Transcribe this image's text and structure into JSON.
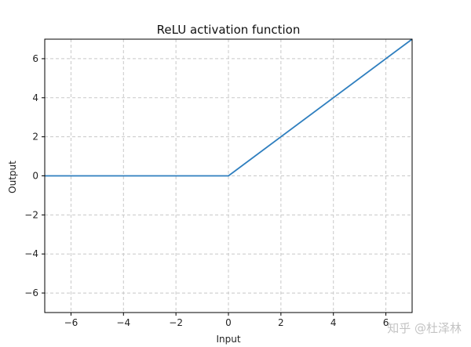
{
  "chart_data": {
    "type": "line",
    "title": "ReLU activation function",
    "xlabel": "Input",
    "ylabel": "Output",
    "xlim": [
      -7,
      7
    ],
    "ylim": [
      -7,
      7
    ],
    "grid": true,
    "x_ticks": [
      -6,
      -4,
      -2,
      0,
      2,
      4,
      6
    ],
    "y_ticks": [
      -6,
      -4,
      -2,
      0,
      2,
      4,
      6
    ],
    "x_tick_labels": [
      "−6",
      "−4",
      "−2",
      "0",
      "2",
      "4",
      "6"
    ],
    "y_tick_labels": [
      "−6",
      "−4",
      "−2",
      "0",
      "2",
      "4",
      "6"
    ],
    "series": [
      {
        "x": [
          -7,
          0,
          7
        ],
        "y": [
          0,
          0,
          7
        ],
        "color": "#2f7fbf"
      }
    ]
  },
  "watermark": "知乎 @杜泽林"
}
